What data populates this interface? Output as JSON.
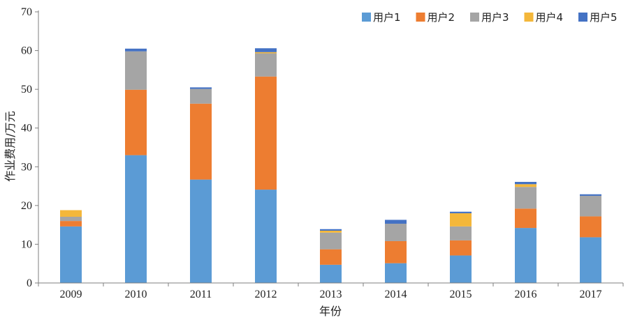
{
  "chart_data": {
    "type": "bar",
    "stacked": true,
    "title": "",
    "xlabel": "年份",
    "ylabel": "作业费用/万元",
    "ylim": [
      0,
      70
    ],
    "yticks": [
      0,
      10,
      20,
      30,
      40,
      50,
      60,
      70
    ],
    "grid": false,
    "legend_position": "top-right",
    "categories": [
      "2009",
      "2010",
      "2011",
      "2012",
      "2013",
      "2014",
      "2015",
      "2016",
      "2017"
    ],
    "series": [
      {
        "name": "用户1",
        "color": "#5b9bd5",
        "values": [
          14.6,
          33.0,
          26.7,
          24.1,
          4.7,
          5.1,
          7.1,
          14.2,
          11.8
        ]
      },
      {
        "name": "用户2",
        "color": "#ed7d31",
        "values": [
          1.4,
          16.9,
          19.6,
          29.2,
          4.0,
          5.7,
          3.9,
          5.0,
          5.4
        ]
      },
      {
        "name": "用户3",
        "color": "#a5a5a5",
        "values": [
          1.1,
          9.9,
          3.8,
          6.0,
          4.3,
          4.5,
          3.6,
          5.6,
          5.3
        ]
      },
      {
        "name": "用户4",
        "color": "#f4b73a",
        "values": [
          1.7,
          0.0,
          0.0,
          0.3,
          0.5,
          0.0,
          3.4,
          0.7,
          0.0
        ]
      },
      {
        "name": "用户5",
        "color": "#4472c4",
        "values": [
          0.0,
          0.7,
          0.4,
          1.0,
          0.4,
          1.0,
          0.4,
          0.6,
          0.4
        ]
      }
    ]
  }
}
